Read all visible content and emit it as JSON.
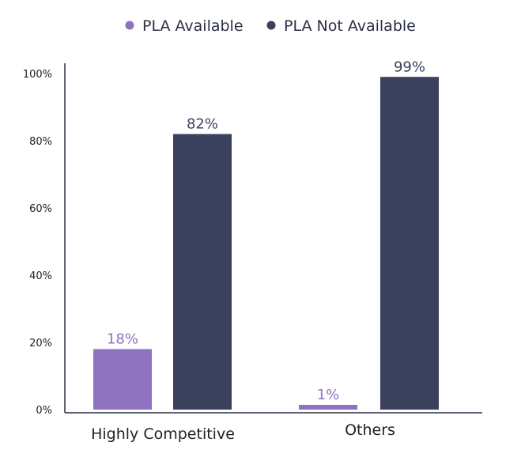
{
  "chart_data": {
    "type": "bar",
    "categories": [
      "Highly Competitive",
      "Others"
    ],
    "series": [
      {
        "name": "PLA Available",
        "values": [
          18,
          1
        ],
        "labels": [
          "18%",
          "1%"
        ],
        "color": "#8e72c0"
      },
      {
        "name": "PLA Not Available",
        "values": [
          82,
          99
        ],
        "labels": [
          "82%",
          "99%"
        ],
        "color": "#3b405d"
      }
    ],
    "ylim": [
      0,
      100
    ],
    "yticks": [
      {
        "value": 0,
        "label": "0%"
      },
      {
        "value": 20,
        "label": "20%"
      },
      {
        "value": 40,
        "label": "40%"
      },
      {
        "value": 60,
        "label": "60%"
      },
      {
        "value": 80,
        "label": "80%"
      },
      {
        "value": 100,
        "label": "100%"
      }
    ],
    "legend_position": "top-center",
    "grid": false,
    "title": "",
    "xlabel": "",
    "ylabel": "",
    "axis_color": "#2b2f44"
  }
}
